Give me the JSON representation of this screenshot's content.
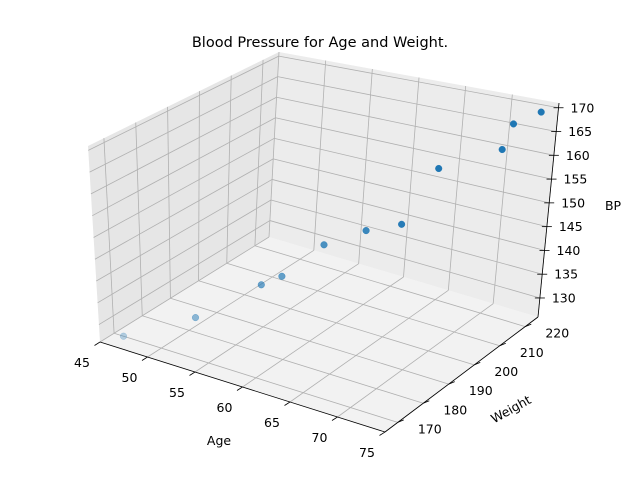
{
  "chart_data": {
    "type": "scatter3d",
    "title": "Blood Pressure for Age and Weight.",
    "xlabel": "Age",
    "ylabel": "Weight",
    "zlabel": "BP",
    "x_ticks": [
      "45",
      "50",
      "55",
      "60",
      "65",
      "70",
      "75"
    ],
    "y_ticks": [
      "170",
      "180",
      "190",
      "200",
      "210",
      "220"
    ],
    "z_ticks": [
      "130",
      "135",
      "140",
      "145",
      "150",
      "155",
      "160",
      "165",
      "170"
    ],
    "xlim": [
      45,
      75
    ],
    "ylim": [
      165,
      225
    ],
    "zlim": [
      126,
      171
    ],
    "grid": true,
    "marker_color": "#1f77b4",
    "points": [
      {
        "x": 46,
        "y": 170,
        "z": 126
      },
      {
        "x": 51,
        "y": 179,
        "z": 130
      },
      {
        "x": 55,
        "y": 189,
        "z": 136
      },
      {
        "x": 58,
        "y": 186,
        "z": 141
      },
      {
        "x": 60,
        "y": 194,
        "z": 146
      },
      {
        "x": 64,
        "y": 195,
        "z": 151
      },
      {
        "x": 66,
        "y": 201,
        "z": 151
      },
      {
        "x": 67,
        "y": 210,
        "z": 160
      },
      {
        "x": 70,
        "y": 223,
        "z": 160
      },
      {
        "x": 72,
        "y": 219,
        "z": 168
      },
      {
        "x": 74,
        "y": 222,
        "z": 170
      }
    ]
  }
}
